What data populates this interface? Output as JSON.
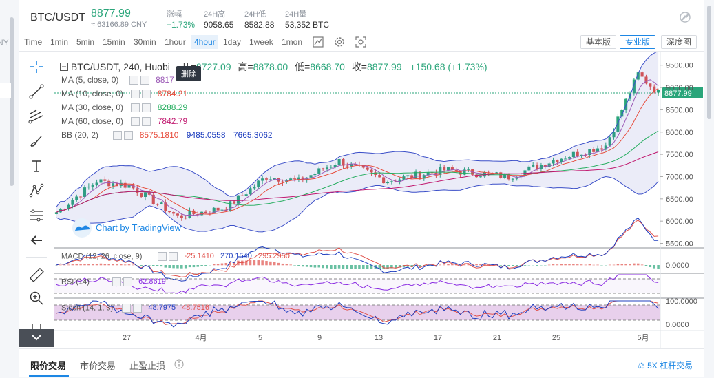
{
  "left_edge": {
    "text": "NY"
  },
  "header": {
    "pair": "BTC/USDT",
    "price": "8877.99",
    "cny": "≈ 63166.89 CNY",
    "stats": [
      {
        "label": "涨幅",
        "value": "+1.73%"
      },
      {
        "label": "24H高",
        "value": "9058.65"
      },
      {
        "label": "24H低",
        "value": "8582.88"
      },
      {
        "label": "24H量",
        "value": "53,352 BTC"
      }
    ]
  },
  "toolbar": {
    "timeframes": [
      "Time",
      "1min",
      "5min",
      "15min",
      "30min",
      "1hour",
      "4hour",
      "1day",
      "1week",
      "1mon"
    ],
    "active_timeframe": "4hour",
    "view_buttons": [
      "基本版",
      "专业版",
      "深度图"
    ],
    "active_view": "专业版"
  },
  "chart": {
    "ohlc": {
      "title": "BTC/USDT, 240, Huobi",
      "open_label": "开=",
      "open": "8727.09",
      "high_label": "高=",
      "high": "8878.00",
      "low_label": "低=",
      "low": "8668.70",
      "close_label": "收=",
      "close": "8877.99",
      "change": "+150.68 (+1.73%)"
    },
    "tooltip": "删除",
    "indicators": [
      {
        "label": "MA (5, close, 0)",
        "value": "8817",
        "color": "#9b59b6"
      },
      {
        "label": "MA (10, close, 0)",
        "value": "8784.21",
        "color": "#e74c3c"
      },
      {
        "label": "MA (30, close, 0)",
        "value": "8288.29",
        "color": "#27ae60"
      },
      {
        "label": "MA (60, close, 0)",
        "value": "7842.79",
        "color": "#c0176e"
      }
    ],
    "bb": {
      "label": "BB (20, 2)",
      "values": [
        "8575.1810",
        "9485.0558",
        "7665.3062"
      ],
      "colors": [
        "#e74c3c",
        "#1f3fbf",
        "#1f3fbf"
      ]
    },
    "watermark": "Chart by TradingView",
    "price_axis": [
      "9500.00",
      "9000.00",
      "8500.00",
      "8000.00",
      "7500.00",
      "7000.00",
      "6500.00",
      "6000.00",
      "5500.00"
    ],
    "last_price_tag": "8877.99",
    "macd": {
      "label": "MACD (12, 26, close, 9)",
      "values": [
        "-25.1410",
        "270.1540",
        "295.2950"
      ],
      "axis": "0.0000"
    },
    "rsi": {
      "label": "RSI (14)",
      "value": "62.8619"
    },
    "stoch": {
      "label": "Stoch (14, 1, 3)",
      "values": [
        "48.7975",
        "48.7516"
      ],
      "axis": [
        "100.0000",
        "0.0000"
      ]
    },
    "x_axis": [
      "27",
      "4月",
      "5",
      "9",
      "13",
      "17",
      "21",
      "25",
      "5月"
    ]
  },
  "bottom_tabs": {
    "tabs": [
      "限价交易",
      "市价交易",
      "止盈止损"
    ],
    "active": "限价交易",
    "leverage": "5X 杠杆交易"
  },
  "colors": {
    "up": "#2aa57a",
    "down": "#e0514b",
    "accent": "#1d87e4"
  }
}
